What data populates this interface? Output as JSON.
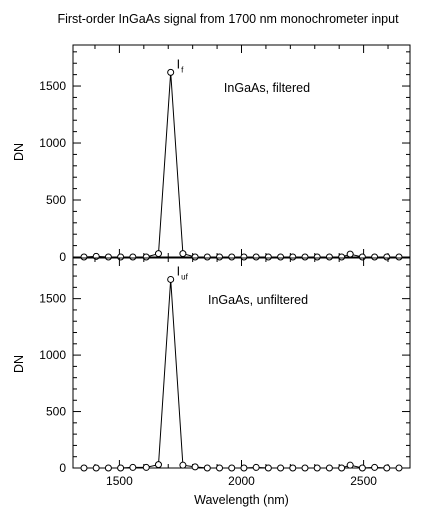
{
  "figure_title": "First-order InGaAs signal from 1700 nm monochrometer input",
  "chart_data": [
    {
      "type": "line",
      "title": "",
      "xlabel": "",
      "ylabel": "DN",
      "xlim": [
        1310,
        2690
      ],
      "ylim": [
        0,
        1860
      ],
      "xticks": [
        1500,
        2000,
        2500
      ],
      "yticks": [
        0,
        500,
        1000,
        1500
      ],
      "tick_labels_x_shown": false,
      "annotation": "InGaAs, filtered",
      "peak_label": {
        "main": "I",
        "sub": "f"
      },
      "grid": false,
      "legend": "none",
      "marker": "open-circle",
      "x": [
        1355,
        1405,
        1455,
        1505,
        1555,
        1610,
        1660,
        1710,
        1760,
        1810,
        1860,
        1910,
        1960,
        2010,
        2060,
        2110,
        2160,
        2210,
        2260,
        2310,
        2360,
        2410,
        2445,
        2495,
        2545,
        2595,
        2645
      ],
      "y": [
        0,
        5,
        0,
        0,
        0,
        0,
        30,
        1620,
        30,
        0,
        0,
        0,
        0,
        0,
        0,
        0,
        0,
        0,
        0,
        0,
        0,
        0,
        25,
        0,
        0,
        0,
        0
      ]
    },
    {
      "type": "line",
      "title": "",
      "xlabel": "Wavelength (nm)",
      "ylabel": "DN",
      "xlim": [
        1310,
        2690
      ],
      "ylim": [
        0,
        1860
      ],
      "xticks": [
        1500,
        2000,
        2500
      ],
      "yticks": [
        0,
        500,
        1000,
        1500
      ],
      "tick_labels_x_shown": true,
      "annotation": "InGaAs, unfiltered",
      "peak_label": {
        "main": "I",
        "sub": "uf"
      },
      "grid": false,
      "legend": "none",
      "marker": "open-circle",
      "x": [
        1355,
        1405,
        1455,
        1505,
        1555,
        1610,
        1660,
        1710,
        1760,
        1810,
        1860,
        1910,
        1960,
        2010,
        2060,
        2110,
        2160,
        2210,
        2260,
        2310,
        2360,
        2410,
        2445,
        2495,
        2545,
        2595,
        2645
      ],
      "y": [
        0,
        0,
        0,
        0,
        5,
        5,
        30,
        1670,
        25,
        10,
        0,
        0,
        0,
        0,
        5,
        0,
        0,
        0,
        0,
        0,
        0,
        0,
        25,
        0,
        5,
        0,
        0
      ]
    }
  ]
}
